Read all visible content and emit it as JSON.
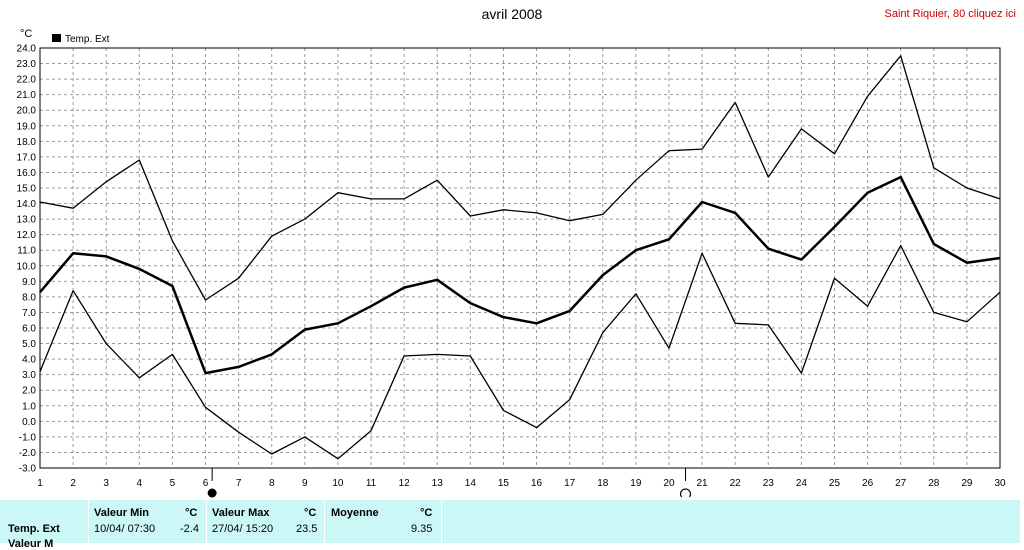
{
  "header": {
    "title": "avril 2008",
    "station_link": "Saint Riquier, 80 cliquez ici"
  },
  "chart_data": {
    "type": "line",
    "title": "avril 2008",
    "ylabel": "°C",
    "legend": "Temp. Ext",
    "legend_position": "top-left",
    "grid": true,
    "ylim": [
      -3.0,
      24.0
    ],
    "yticks": [
      "24.0",
      "23.0",
      "22.0",
      "21.0",
      "20.0",
      "19.0",
      "18.0",
      "17.0",
      "16.0",
      "15.0",
      "14.0",
      "13.0",
      "12.0",
      "11.0",
      "10.0",
      "9.0",
      "8.0",
      "7.0",
      "6.0",
      "5.0",
      "4.0",
      "3.0",
      "2.0",
      "1.0",
      "0.0",
      "-1.0",
      "-2.0",
      "-3.0"
    ],
    "x": [
      1,
      2,
      3,
      4,
      5,
      6,
      7,
      8,
      9,
      10,
      11,
      12,
      13,
      14,
      15,
      16,
      17,
      18,
      19,
      20,
      21,
      22,
      23,
      24,
      25,
      26,
      27,
      28,
      29,
      30
    ],
    "series": [
      {
        "role": "max",
        "line": "thin",
        "values": [
          14.1,
          13.7,
          15.4,
          16.8,
          11.6,
          7.8,
          9.2,
          11.9,
          13.0,
          14.7,
          14.3,
          14.3,
          15.5,
          13.2,
          13.6,
          13.4,
          12.9,
          13.3,
          15.5,
          17.4,
          17.5,
          20.5,
          15.7,
          18.8,
          17.2,
          20.9,
          23.5,
          16.3,
          15.0,
          14.3
        ]
      },
      {
        "role": "average",
        "line": "thick",
        "values": [
          8.3,
          10.8,
          10.6,
          9.8,
          8.7,
          3.1,
          3.5,
          4.3,
          5.9,
          6.3,
          7.4,
          8.6,
          9.1,
          7.6,
          6.7,
          6.3,
          7.1,
          9.4,
          11.0,
          11.7,
          14.1,
          13.4,
          11.1,
          10.4,
          12.5,
          14.7,
          15.7,
          11.4,
          10.2,
          10.5
        ]
      },
      {
        "role": "min",
        "line": "thin",
        "values": [
          3.2,
          8.4,
          5.0,
          2.8,
          4.3,
          0.9,
          -0.7,
          -2.1,
          -1.0,
          -2.4,
          -0.6,
          4.2,
          4.3,
          4.2,
          0.7,
          -0.4,
          1.4,
          5.7,
          8.2,
          4.7,
          10.8,
          6.3,
          6.2,
          3.1,
          9.2,
          7.4,
          11.3,
          7.0,
          6.4,
          8.3
        ]
      }
    ],
    "moon_markers": [
      {
        "x": 6.2,
        "icon": "full-moon-icon"
      },
      {
        "x": 20.5,
        "icon": "waning-moon-icon"
      }
    ]
  },
  "stats": {
    "row_label": "Temp. Ext",
    "min_header": "Valeur Min",
    "max_header": "Valeur Max",
    "avg_header": "Moyenne",
    "unit": "°C",
    "min_datetime": "10/04/  07:30",
    "min_value": "-2.4",
    "max_datetime": "27/04/  15:20",
    "max_value": "23.5",
    "avg_value": "9.35",
    "next_row_label": "Valeur M"
  }
}
